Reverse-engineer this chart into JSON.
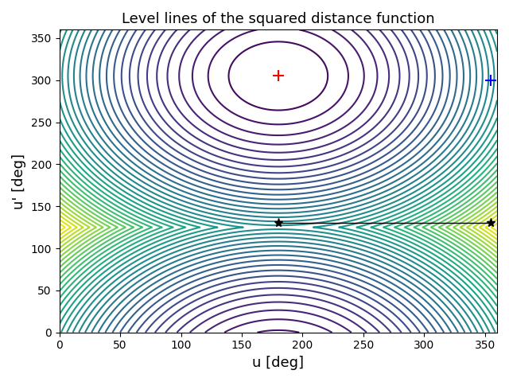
{
  "title": "Level lines of the squared distance function",
  "xlabel": "u [deg]",
  "ylabel": "u' [deg]",
  "u0": 180,
  "u0p": 305,
  "u1": 355,
  "u1p": 300,
  "star1": [
    180,
    130
  ],
  "star2": [
    355,
    130
  ],
  "n_levels": 40,
  "cmap": "viridis",
  "figsize": [
    6.4,
    4.8
  ],
  "dpi": 100
}
